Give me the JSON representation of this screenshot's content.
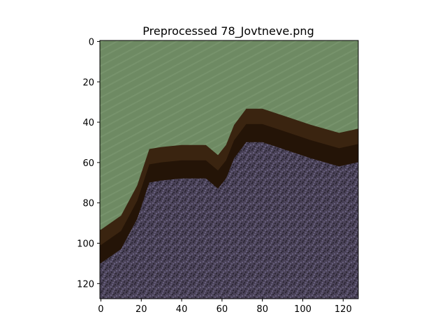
{
  "chart_data": {
    "type": "heatmap",
    "title": "Preprocessed 78_Jovtneve.png",
    "xlabel": "",
    "ylabel": "",
    "xlim": [
      -0.5,
      127.5
    ],
    "ylim": [
      127.5,
      -0.5
    ],
    "grid": false,
    "x_ticks": [
      0,
      20,
      40,
      60,
      80,
      100,
      120
    ],
    "y_ticks": [
      0,
      20,
      40,
      60,
      80,
      100,
      120
    ],
    "image_size": [
      128,
      128
    ],
    "boundary": [
      {
        "x": 0,
        "y": 94
      },
      {
        "x": 10,
        "y": 87
      },
      {
        "x": 18,
        "y": 72
      },
      {
        "x": 24,
        "y": 54
      },
      {
        "x": 30,
        "y": 53
      },
      {
        "x": 40,
        "y": 52
      },
      {
        "x": 52,
        "y": 52
      },
      {
        "x": 58,
        "y": 57
      },
      {
        "x": 62,
        "y": 52
      },
      {
        "x": 66,
        "y": 42
      },
      {
        "x": 72,
        "y": 34
      },
      {
        "x": 80,
        "y": 34
      },
      {
        "x": 92,
        "y": 38
      },
      {
        "x": 104,
        "y": 42
      },
      {
        "x": 118,
        "y": 46
      },
      {
        "x": 127,
        "y": 44
      }
    ],
    "regions": {
      "upper": "green field",
      "lower": "dark purple plowed soil",
      "edge": "dark brown tree line"
    },
    "colors": {
      "field": "#6e8a63",
      "field_stripe": "#7e9a72",
      "soil": "#4a4258",
      "soil_dark": "#2f2a38",
      "soil_light": "#6d6785",
      "trees": "#3a2410",
      "trees_dark": "#241407"
    }
  }
}
